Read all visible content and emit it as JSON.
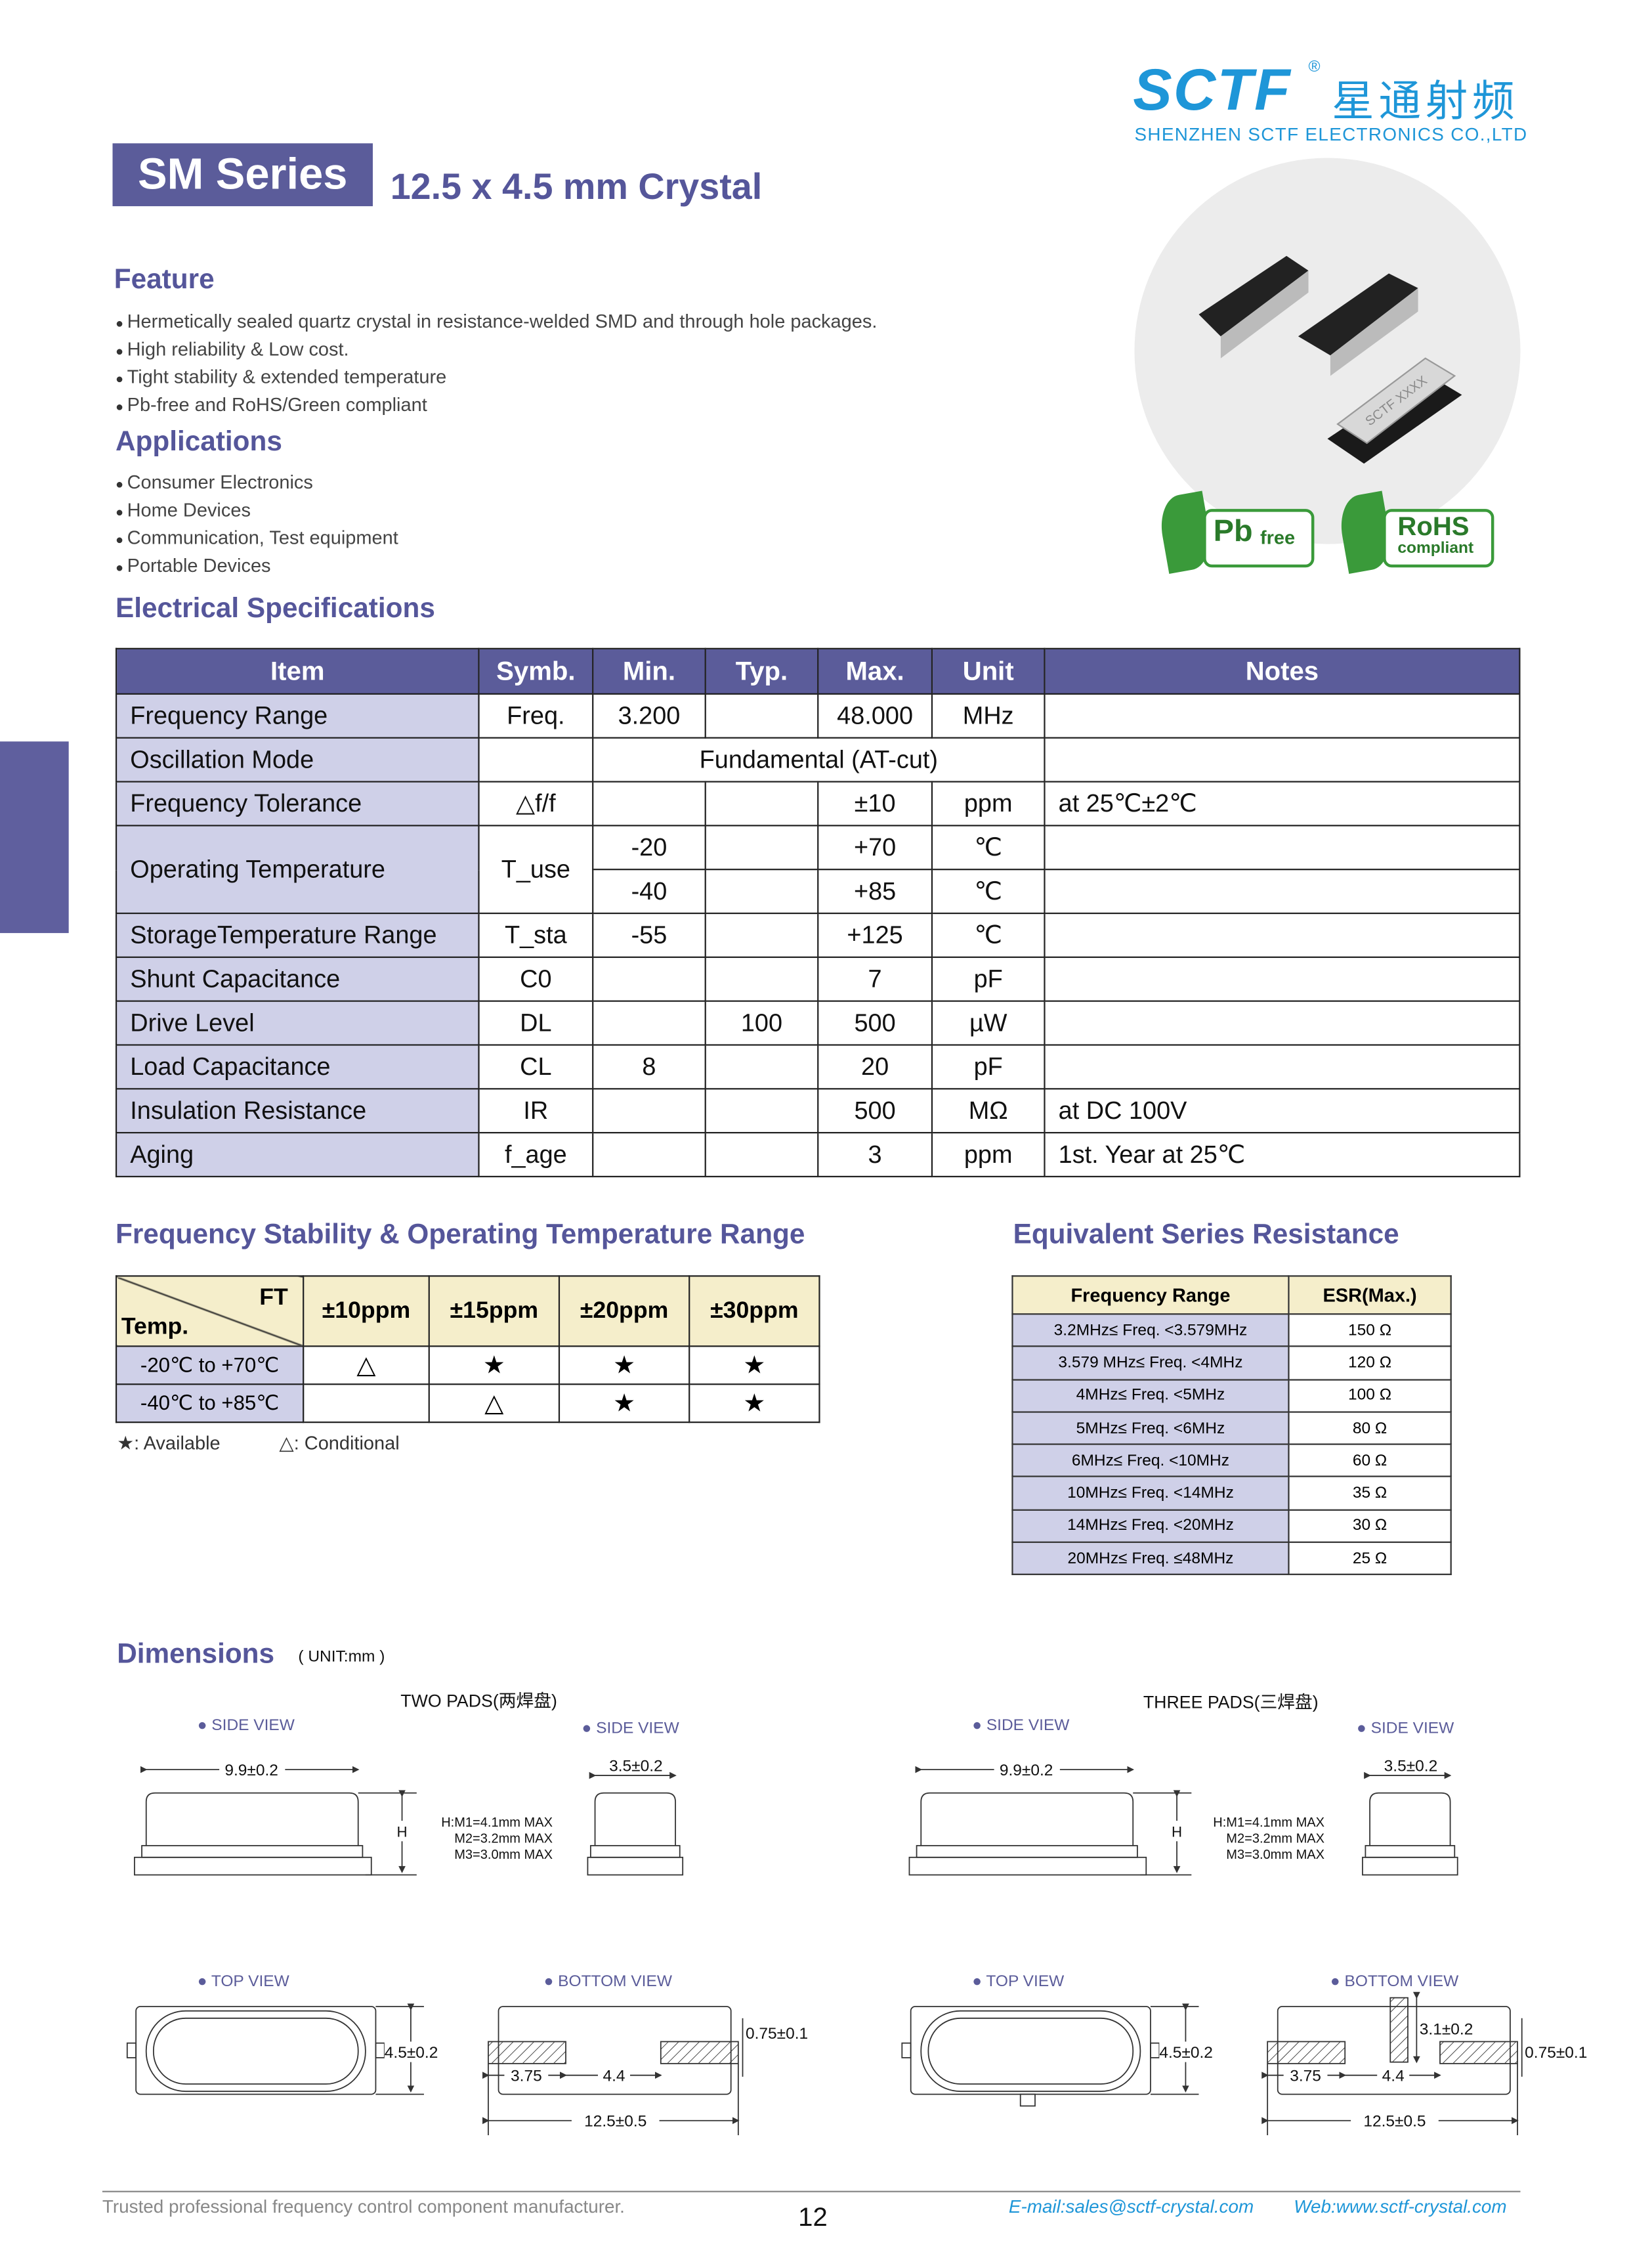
{
  "brand": {
    "logo": "SCTF",
    "logo_cn": "星通射频",
    "company": "SHENZHEN SCTF ELECTRONICS CO.,LTD",
    "color": "#1e96d8"
  },
  "header": {
    "series": "SM Series",
    "subtitle": "12.5 x 4.5 mm Crystal"
  },
  "feature": {
    "title": "Feature",
    "items": [
      "Hermetically sealed quartz crystal in resistance-welded SMD and through hole packages.",
      "High reliability & Low cost.",
      "Tight stability & extended temperature",
      "Pb-free and RoHS/Green compliant"
    ]
  },
  "applications": {
    "title": "Applications",
    "items": [
      "Consumer Electronics",
      "Home Devices",
      "Communication, Test equipment",
      "Portable Devices"
    ]
  },
  "badges": {
    "pb": "Pb",
    "pb_sub": "free",
    "rohs": "RoHS",
    "rohs_sub": "compliant"
  },
  "product_image": {
    "marking": "SCTF XXXX"
  },
  "elec": {
    "title": "Electrical Specifications",
    "headers": [
      "Item",
      "Symb.",
      "Min.",
      "Typ.",
      "Max.",
      "Unit",
      "Notes"
    ],
    "rows": [
      [
        "Frequency Range",
        "Freq.",
        "3.200",
        "",
        "48.000",
        "MHz",
        ""
      ],
      [
        "Oscillation Mode",
        "",
        "Fundamental  (AT-cut)",
        "",
        "",
        "",
        ""
      ],
      [
        "Frequency Tolerance",
        "△f/f",
        "",
        "",
        "±10",
        "ppm",
        "at 25℃±2℃"
      ],
      [
        "Operating Temperature",
        "T_use",
        "-20",
        "",
        "+70",
        "℃",
        ""
      ],
      [
        "",
        "",
        "-40",
        "",
        "+85",
        "℃",
        ""
      ],
      [
        "StorageTemperature Range",
        "T_sta",
        "-55",
        "",
        "+125",
        "℃",
        ""
      ],
      [
        "Shunt Capacitance",
        "C0",
        "",
        "",
        "7",
        "pF",
        ""
      ],
      [
        "Drive Level",
        "DL",
        "",
        "100",
        "500",
        "µW",
        ""
      ],
      [
        "Load Capacitance",
        "CL",
        "8",
        "",
        "20",
        "pF",
        ""
      ],
      [
        "Insulation Resistance",
        "IR",
        "",
        "",
        "500",
        "MΩ",
        "at DC 100V"
      ],
      [
        "Aging",
        "f_age",
        "",
        "",
        "3",
        "ppm",
        "1st. Year at 25℃"
      ]
    ]
  },
  "stability": {
    "title": "Frequency Stability & Operating Temperature Range",
    "corner_top": "FT",
    "corner_bottom": "Temp.",
    "headers": [
      "±10ppm",
      "±15ppm",
      "±20ppm",
      "±30ppm"
    ],
    "rows": [
      {
        "temp": "-20℃ to +70℃",
        "cells": [
          "△",
          "★",
          "★",
          "★"
        ]
      },
      {
        "temp": "-40℃ to +85℃",
        "cells": [
          "",
          "△",
          "★",
          "★"
        ]
      }
    ],
    "legend_available": "★:  Available",
    "legend_conditional": "△:  Conditional"
  },
  "esr": {
    "title": "Equivalent Series Resistance",
    "headers": [
      "Frequency Range",
      "ESR(Max.)"
    ],
    "rows": [
      [
        "3.2MHz≤ Freq. <3.579MHz",
        "150 Ω"
      ],
      [
        "3.579 MHz≤ Freq. <4MHz",
        "120 Ω"
      ],
      [
        "4MHz≤ Freq. <5MHz",
        "100 Ω"
      ],
      [
        "5MHz≤ Freq. <6MHz",
        "80 Ω"
      ],
      [
        "6MHz≤ Freq. <10MHz",
        "60 Ω"
      ],
      [
        "10MHz≤ Freq. <14MHz",
        "35 Ω"
      ],
      [
        "14MHz≤ Freq. <20MHz",
        "30 Ω"
      ],
      [
        "20MHz≤ Freq. ≤48MHz",
        "25 Ω"
      ]
    ]
  },
  "dimensions": {
    "title": "Dimensions",
    "unit": "( UNIT:mm )",
    "two_pads": "TWO PADS(两焊盘)",
    "three_pads": "THREE PADS(三焊盘)",
    "side_view": "● SIDE VIEW",
    "top_view": "● TOP VIEW",
    "bottom_view": "● BOTTOM VIEW",
    "length_side": "9.9±0.2",
    "width_side": "3.5±0.2",
    "h": "H",
    "h_notes": [
      "H:M1=4.1mm MAX",
      "M2=3.2mm MAX",
      "M3=3.0mm MAX"
    ],
    "width_top": "4.5±0.2",
    "pad_w": "0.75±0.1",
    "pad_len": "3.75",
    "pad_gap": "4.4",
    "total_len": "12.5±0.5",
    "center_pad": "3.1±0.2"
  },
  "footer": {
    "tagline": "Trusted professional frequency control component manufacturer.",
    "page": "12",
    "email": "E-mail:sales@sctf-crystal.com",
    "web": "Web:www.sctf-crystal.com"
  },
  "colors": {
    "accent": "#5b5c9a",
    "lavender": "#cfd0e8",
    "beige": "#f5eecb",
    "green": "#3a9a3a"
  }
}
